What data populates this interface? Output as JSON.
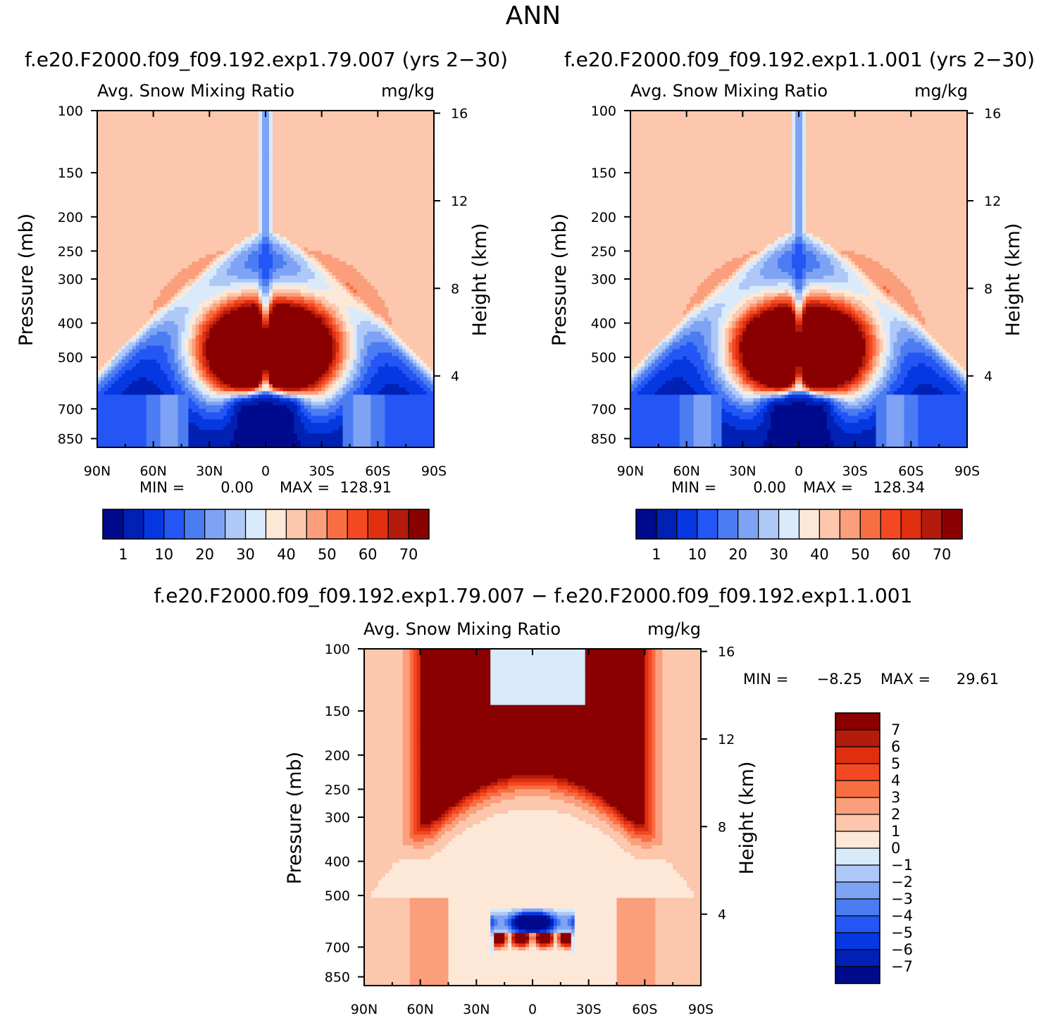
{
  "figure_title": "ANN",
  "palettes": {
    "abs": [
      "#000a8c",
      "#0021b4",
      "#0538e1",
      "#2456f5",
      "#4c7cf2",
      "#7fa3f4",
      "#aec8f7",
      "#d9eafb",
      "#fde8d8",
      "#fcc7ac",
      "#fb9e7c",
      "#f86e43",
      "#f34822",
      "#e02f0f",
      "#b31c0c",
      "#8a0000"
    ],
    "diff": [
      "#000a8c",
      "#0021b4",
      "#0538e1",
      "#2456f5",
      "#4c7cf2",
      "#7fa3f4",
      "#aec8f7",
      "#d9eafb",
      "#fde8d8",
      "#fcc7ac",
      "#fb9e7c",
      "#f86e43",
      "#f34822",
      "#e02f0f",
      "#b31c0c",
      "#8a0000"
    ]
  },
  "chart_data": [
    {
      "id": "case1",
      "type": "heatmap",
      "case_title": "f.e20.F2000.f09_f09.192.exp1.79.007 (yrs 2−30)",
      "left_title": "Avg. Snow Mixing Ratio",
      "right_title": "mg/kg",
      "ylabel": "Pressure (mb)",
      "ylabel2": "Height (km)",
      "xlim": [
        90,
        -90
      ],
      "x_ticks": [
        "90N",
        "60N",
        "30N",
        "0",
        "30S",
        "60S",
        "90S"
      ],
      "x_tick_values": [
        90,
        60,
        30,
        0,
        -30,
        -60,
        -90
      ],
      "ylim": [
        100,
        900
      ],
      "y_ticks": [
        100,
        150,
        200,
        250,
        300,
        400,
        500,
        700,
        850
      ],
      "y2_ticks": [
        16,
        12,
        8,
        4
      ],
      "min_label": "MIN =",
      "min_value": "0.00",
      "max_label": "MAX =",
      "max_value": "128.91",
      "levels": [
        1,
        5,
        10,
        15,
        20,
        25,
        30,
        35,
        40,
        45,
        50,
        55,
        60,
        65,
        70
      ],
      "colorbar_labels": [
        "1",
        "10",
        "20",
        "30",
        "40",
        "50",
        "60",
        "70"
      ],
      "peak_scale": 1.0
    },
    {
      "id": "case2",
      "type": "heatmap",
      "case_title": "f.e20.F2000.f09_f09.192.exp1.1.001 (yrs 2−30)",
      "left_title": "Avg. Snow Mixing Ratio",
      "right_title": "mg/kg",
      "ylabel": "Pressure (mb)",
      "ylabel2": "Height (km)",
      "xlim": [
        90,
        -90
      ],
      "x_ticks": [
        "90N",
        "60N",
        "30N",
        "0",
        "30S",
        "60S",
        "90S"
      ],
      "x_tick_values": [
        90,
        60,
        30,
        0,
        -30,
        -60,
        -90
      ],
      "ylim": [
        100,
        900
      ],
      "y_ticks": [
        100,
        150,
        200,
        250,
        300,
        400,
        500,
        700,
        850
      ],
      "y2_ticks": [
        16,
        12,
        8,
        4
      ],
      "min_label": "MIN =",
      "min_value": "0.00",
      "max_label": "MAX =",
      "max_value": "128.34",
      "levels": [
        1,
        5,
        10,
        15,
        20,
        25,
        30,
        35,
        40,
        45,
        50,
        55,
        60,
        65,
        70
      ],
      "colorbar_labels": [
        "1",
        "10",
        "20",
        "30",
        "40",
        "50",
        "60",
        "70"
      ],
      "peak_scale": 0.96
    },
    {
      "id": "diff",
      "type": "heatmap",
      "case_title": "f.e20.F2000.f09_f09.192.exp1.79.007 − f.e20.F2000.f09_f09.192.exp1.1.001",
      "left_title": "Avg. Snow Mixing Ratio",
      "right_title": "mg/kg",
      "ylabel": "Pressure (mb)",
      "ylabel2": "Height (km)",
      "xlim": [
        90,
        -90
      ],
      "x_ticks": [
        "90N",
        "60N",
        "30N",
        "0",
        "30S",
        "60S",
        "90S"
      ],
      "x_tick_values": [
        90,
        60,
        30,
        0,
        -30,
        -60,
        -90
      ],
      "ylim": [
        100,
        900
      ],
      "y_ticks": [
        100,
        150,
        200,
        250,
        300,
        400,
        500,
        700,
        850
      ],
      "y2_ticks": [
        16,
        12,
        8,
        4
      ],
      "min_label": "MIN =",
      "min_value": "−8.25",
      "max_label": "MAX =",
      "max_value": "29.61",
      "levels": [
        -7,
        -6,
        -5,
        -4,
        -3,
        -2,
        -1,
        0,
        1,
        2,
        3,
        4,
        5,
        6,
        7
      ],
      "colorbar_labels": [
        "7",
        "6",
        "5",
        "4",
        "3",
        "2",
        "1",
        "0",
        "−1",
        "−2",
        "−3",
        "−4",
        "−5",
        "−6",
        "−7"
      ]
    }
  ]
}
